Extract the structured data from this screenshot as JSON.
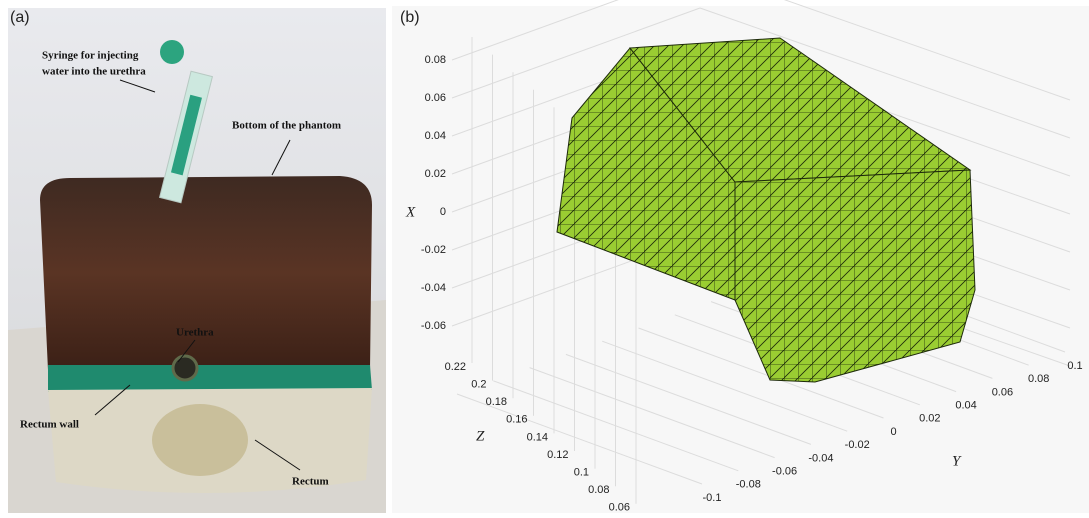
{
  "panel_a": {
    "label": "(a)",
    "annotations": [
      "Syringe for injecting",
      "water into the urethra",
      "Bottom of the phantom",
      "Urethra",
      "Rectum wall",
      "Rectum"
    ]
  },
  "panel_b": {
    "label": "(b)",
    "x_axis": {
      "label": "X",
      "ticks": [
        0.08,
        0.06,
        0.04,
        0.02,
        0,
        -0.02,
        -0.04,
        -0.06
      ]
    },
    "z_axis": {
      "label": "Z",
      "ticks": [
        0.22,
        0.2,
        0.18,
        0.16,
        0.14,
        0.12,
        0.1,
        0.08,
        0.06
      ]
    },
    "y_axis": {
      "label": "Y",
      "ticks": [
        -0.1,
        -0.08,
        -0.06,
        -0.04,
        -0.02,
        0,
        0.02,
        0.04,
        0.06,
        0.08,
        0.1
      ]
    }
  }
}
